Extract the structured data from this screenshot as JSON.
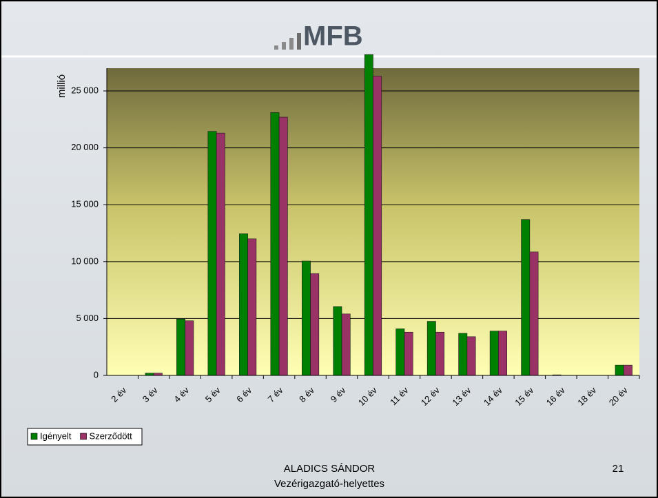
{
  "logo": "MFB",
  "footer": {
    "name": "ALADICS SÁNDOR",
    "role": "Vezérigazgató-helyettes",
    "page": "21"
  },
  "chart_data": {
    "type": "bar",
    "ylabel": "millió",
    "categories": [
      "2 év",
      "3 év",
      "4 év",
      "5 év",
      "6 év",
      "7 év",
      "8 év",
      "9 év",
      "10 év",
      "11 év",
      "12 év",
      "13 év",
      "14 év",
      "15 év",
      "16 év",
      "18 év",
      "20 év"
    ],
    "series": [
      {
        "name": "Igényelt",
        "color": "#008000",
        "values": [
          0,
          200,
          4950,
          21450,
          12450,
          23100,
          10050,
          6050,
          28200,
          4100,
          4750,
          3700,
          3900,
          13700,
          50,
          0,
          900
        ]
      },
      {
        "name": "Szerződött",
        "color": "#993366",
        "values": [
          0,
          200,
          4800,
          21300,
          12000,
          22700,
          8950,
          5400,
          26300,
          3800,
          3800,
          3400,
          3900,
          10850,
          0,
          0,
          900
        ]
      }
    ],
    "ylim": [
      0,
      27000
    ],
    "yticks": [
      0,
      {
        "value": 5000,
        "label": "5 000"
      },
      {
        "value": 10000,
        "label": "10 000"
      },
      {
        "value": 15000,
        "label": "15 000"
      },
      {
        "value": 20000,
        "label": "20 000"
      },
      {
        "value": 25000,
        "label": "25 000"
      }
    ],
    "grid": true,
    "legend": "bottom-left"
  }
}
